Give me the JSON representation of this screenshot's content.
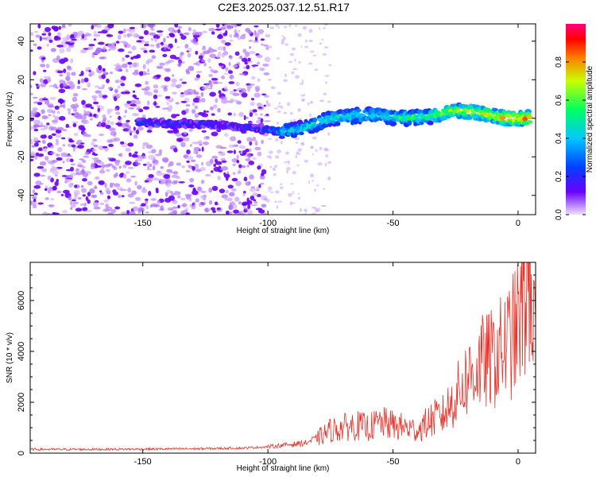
{
  "title": "C2E3.2025.037.12.51.R17",
  "chart_data": [
    {
      "type": "heatmap",
      "panel": "spectrogram",
      "xlabel": "Height of straight line (km)",
      "ylabel": "Frequency (Hz)",
      "xlim": [
        -195,
        7
      ],
      "ylim": [
        -50,
        49
      ],
      "xticks": [
        -150,
        -100,
        -50,
        0
      ],
      "yticks": [
        -40,
        -20,
        0,
        20,
        40
      ],
      "colorbar": {
        "label": "Normalized spectral amplitude",
        "range": [
          0,
          1
        ],
        "ticks": [
          0.0,
          0.2,
          0.4,
          0.6,
          0.8
        ],
        "colormap": [
          "#f0e0ff",
          "#6a00ff",
          "#0040ff",
          "#00c8ff",
          "#00ff80",
          "#c8ff00",
          "#ff8000",
          "#ff0000",
          "#ff0080"
        ]
      },
      "ridge": {
        "description": "dominant frequency track",
        "x": [
          -152,
          -140,
          -125,
          -115,
          -105,
          -95,
          -85,
          -75,
          -60,
          -45,
          -35,
          -25,
          -15,
          -5,
          5
        ],
        "y": [
          -2,
          -3,
          -3,
          -4,
          -5,
          -7,
          -5,
          0,
          2,
          0,
          1,
          4,
          3,
          0,
          0
        ],
        "amplitude": [
          0.25,
          0.2,
          0.22,
          0.18,
          0.2,
          0.4,
          0.45,
          0.5,
          0.45,
          0.55,
          0.6,
          0.7,
          0.75,
          0.85,
          0.9
        ]
      },
      "background_noise": {
        "x_range": [
          -195,
          -100
        ],
        "y_range": [
          -50,
          49
        ],
        "amplitude": 0.1
      }
    },
    {
      "type": "line",
      "panel": "snr",
      "xlabel": "Height of straight line (km)",
      "ylabel": "SNR (10 * v/v)",
      "xlim": [
        -195,
        7
      ],
      "ylim": [
        0,
        7500
      ],
      "xticks": [
        -150,
        -100,
        -50,
        0
      ],
      "yticks": [
        0,
        2000,
        4000,
        6000
      ],
      "color": "#e8332a",
      "series": [
        {
          "x": [
            -195,
            -170,
            -150,
            -130,
            -110,
            -100,
            -95,
            -90,
            -85,
            -80,
            -75,
            -70,
            -65,
            -60,
            -55,
            -50,
            -45,
            -40,
            -35,
            -30,
            -25,
            -20,
            -15,
            -10,
            -5,
            -2,
            0,
            2,
            5,
            7
          ],
          "y": [
            150,
            150,
            160,
            170,
            200,
            250,
            300,
            350,
            400,
            600,
            900,
            1000,
            1100,
            1000,
            1200,
            1100,
            1000,
            900,
            1300,
            1500,
            2200,
            3000,
            3500,
            3700,
            4200,
            4600,
            5000,
            5800,
            7200,
            3800
          ]
        }
      ]
    }
  ]
}
